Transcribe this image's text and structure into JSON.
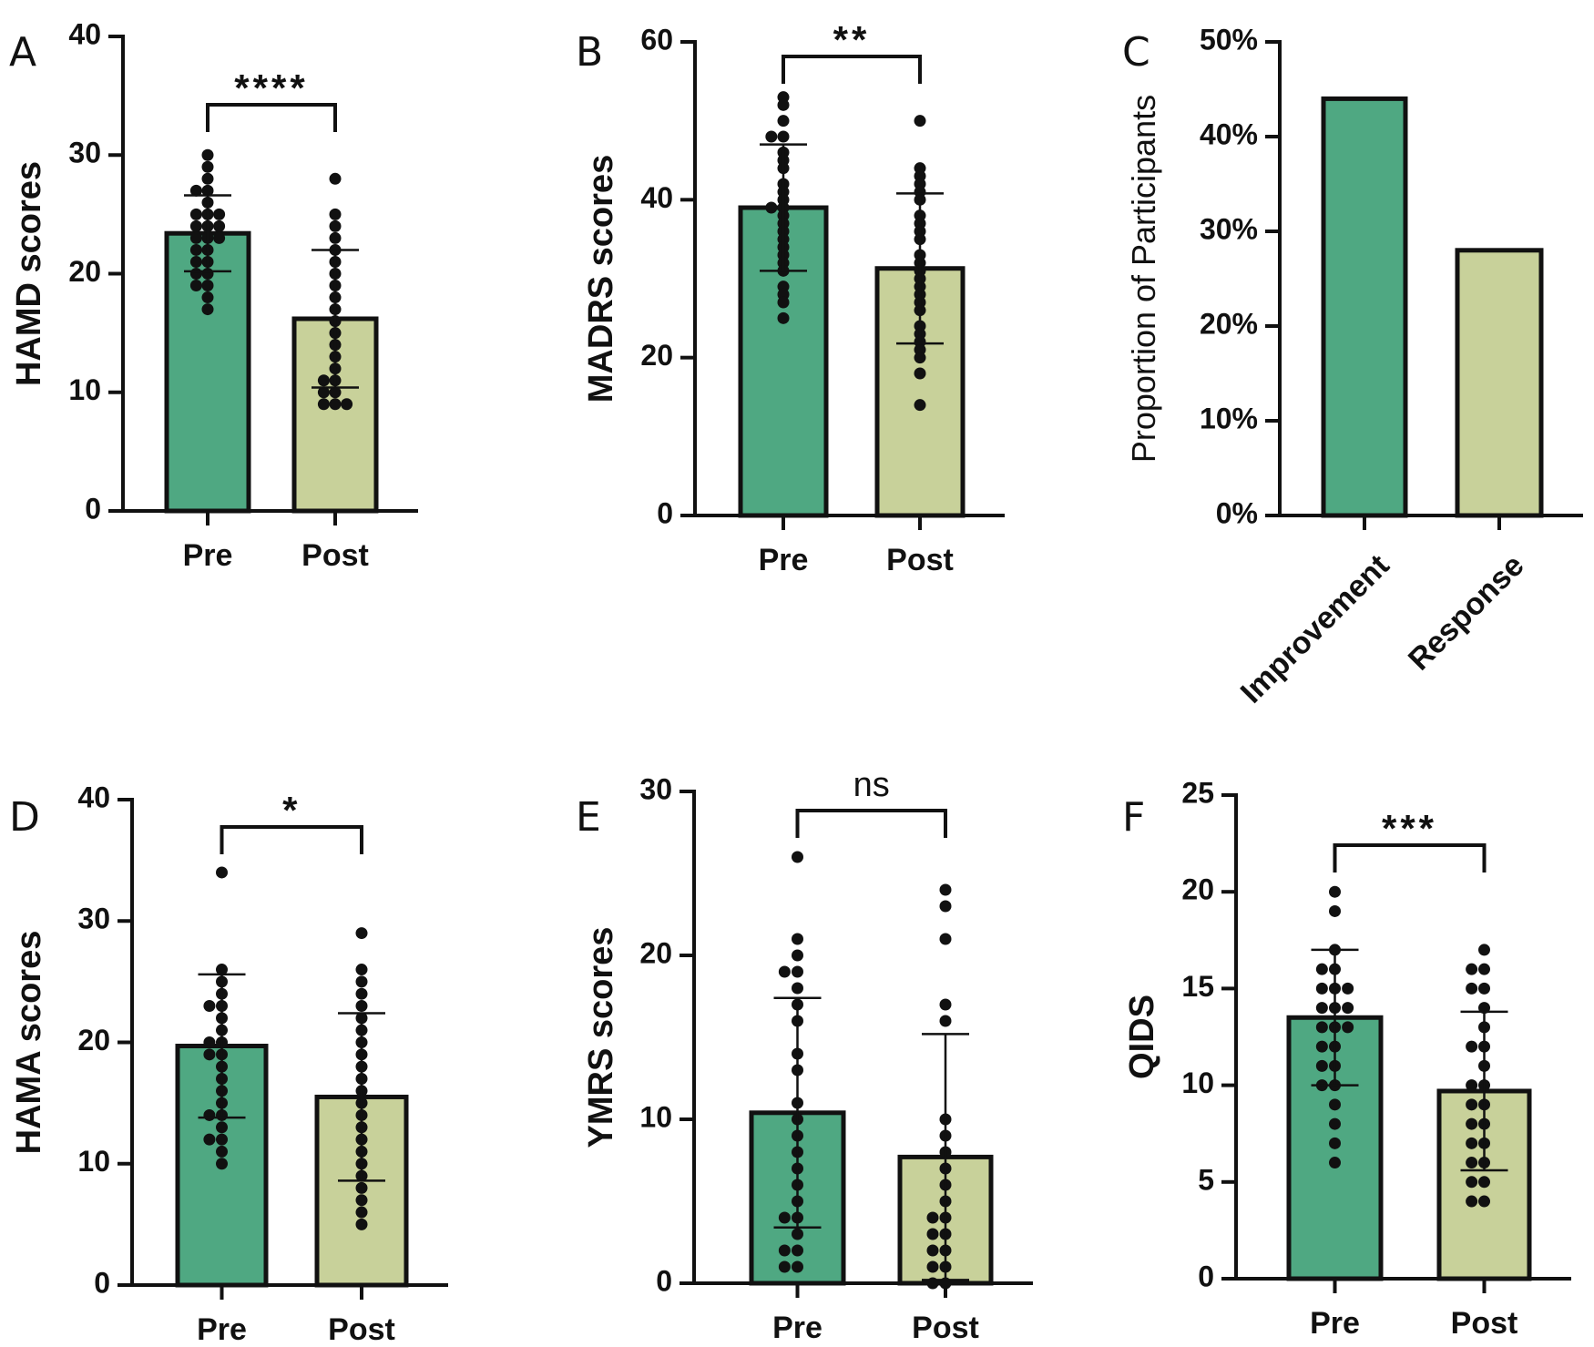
{
  "colors": {
    "pre": "#4fa882",
    "post": "#c8d19a",
    "ink": "#111111"
  },
  "chart_data": [
    {
      "panel": "A",
      "type": "bar",
      "ylabel": "HAMD scores",
      "ylim": [
        0,
        40
      ],
      "yticks": [
        0,
        10,
        20,
        30,
        40
      ],
      "categories": [
        "Pre",
        "Post"
      ],
      "values": [
        23.4,
        16.2
      ],
      "sd": [
        3.2,
        5.8
      ],
      "points": [
        [
          30,
          29,
          28,
          27,
          27,
          26,
          25,
          25,
          25,
          24,
          24,
          24,
          23,
          23,
          23,
          22,
          22,
          21,
          21,
          20,
          20,
          19,
          19,
          18,
          17
        ],
        [
          28,
          25,
          24,
          23,
          22,
          21,
          20,
          19,
          18,
          17,
          16,
          15,
          14,
          13,
          12,
          11,
          11,
          10,
          10,
          9,
          9,
          9
        ]
      ],
      "significance": "****"
    },
    {
      "panel": "B",
      "type": "bar",
      "ylabel": "MADRS scores",
      "ylim": [
        0,
        60
      ],
      "yticks": [
        0,
        20,
        40,
        60
      ],
      "categories": [
        "Pre",
        "Post"
      ],
      "values": [
        39,
        31.3
      ],
      "sd": [
        8,
        9.5
      ],
      "points": [
        [
          53,
          52,
          50,
          48,
          48,
          46,
          45,
          44,
          42,
          41,
          40,
          39,
          39,
          38,
          37,
          36,
          35,
          34,
          33,
          32,
          31,
          29,
          28,
          27,
          25
        ],
        [
          50,
          44,
          43,
          42,
          41,
          40,
          38,
          37,
          36,
          35,
          33,
          32,
          31,
          30,
          29,
          28,
          27,
          26,
          24,
          23,
          22,
          21,
          20,
          18,
          14
        ]
      ],
      "significance": "**"
    },
    {
      "panel": "C",
      "type": "bar",
      "ylabel": "Proportion of Participants",
      "ylim": [
        0,
        50
      ],
      "yticks": [
        "0%",
        "10%",
        "20%",
        "30%",
        "40%",
        "50%"
      ],
      "categories": [
        "Improvement",
        "Response"
      ],
      "values": [
        44,
        28
      ]
    },
    {
      "panel": "D",
      "type": "bar",
      "ylabel": "HAMA scores",
      "ylim": [
        0,
        40
      ],
      "yticks": [
        0,
        10,
        20,
        30,
        40
      ],
      "categories": [
        "Pre",
        "Post"
      ],
      "values": [
        19.7,
        15.5
      ],
      "sd": [
        5.9,
        6.9
      ],
      "points": [
        [
          34,
          26,
          25,
          24,
          23,
          23,
          22,
          21,
          20,
          20,
          19,
          19,
          18,
          17,
          16,
          15,
          14,
          14,
          13,
          12,
          12,
          11,
          10
        ],
        [
          29,
          26,
          25,
          24,
          23,
          22,
          21,
          20,
          19,
          18,
          17,
          16,
          15,
          14,
          13,
          12,
          11,
          10,
          9,
          8,
          7,
          6,
          5
        ]
      ],
      "significance": "*"
    },
    {
      "panel": "E",
      "type": "bar",
      "ylabel": "YMRS scores",
      "ylim": [
        0,
        30
      ],
      "yticks": [
        0,
        10,
        20,
        30
      ],
      "categories": [
        "Pre",
        "Post"
      ],
      "values": [
        10.4,
        7.7
      ],
      "sd": [
        7,
        7.5
      ],
      "points": [
        [
          26,
          21,
          20,
          19,
          19,
          18,
          17,
          16,
          14,
          13,
          11,
          10,
          9,
          8,
          7,
          6,
          5,
          4,
          4,
          3,
          2,
          2,
          1,
          1
        ],
        [
          24,
          23,
          21,
          17,
          16,
          10,
          9,
          8,
          7,
          6,
          5,
          4,
          4,
          3,
          3,
          2,
          2,
          1,
          1,
          0,
          0
        ]
      ],
      "significance": "ns"
    },
    {
      "panel": "F",
      "type": "bar",
      "ylabel": "QIDS",
      "ylim": [
        0,
        25
      ],
      "yticks": [
        0,
        5,
        10,
        15,
        20,
        25
      ],
      "categories": [
        "Pre",
        "Post"
      ],
      "values": [
        13.5,
        9.7
      ],
      "sd": [
        3.5,
        4.1
      ],
      "points": [
        [
          20,
          19,
          17,
          16,
          16,
          15,
          15,
          15,
          14,
          14,
          14,
          13,
          13,
          13,
          12,
          12,
          11,
          11,
          10,
          10,
          9,
          8,
          7,
          6
        ],
        [
          17,
          16,
          16,
          15,
          15,
          14,
          13,
          12,
          12,
          11,
          10,
          10,
          9,
          9,
          8,
          8,
          7,
          7,
          6,
          6,
          5,
          5,
          4,
          4
        ]
      ],
      "significance": "***"
    }
  ]
}
